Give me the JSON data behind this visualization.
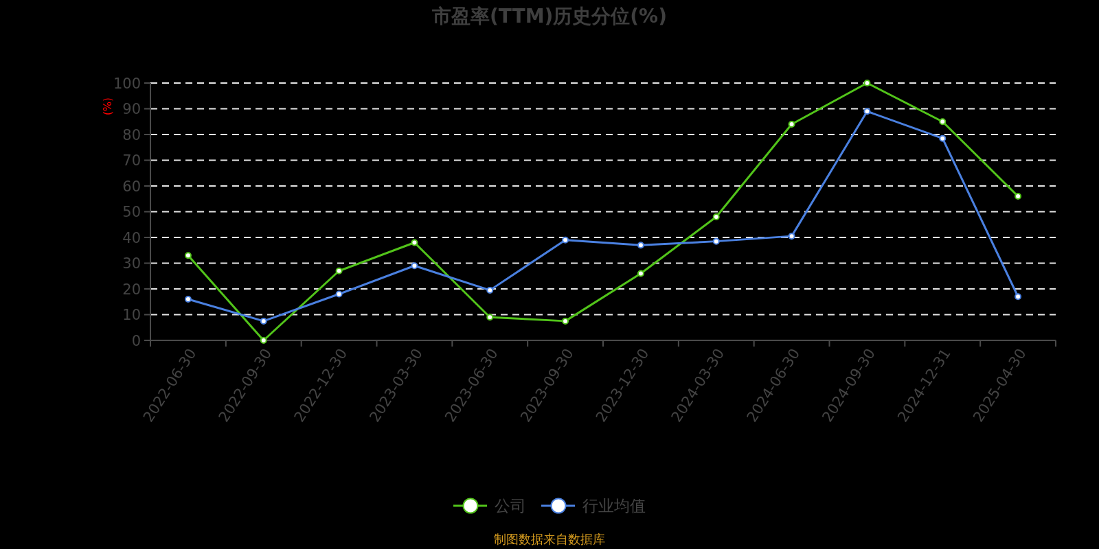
{
  "chart_data": {
    "type": "line",
    "title": "市盈率(TTM)历史分位(%)",
    "ylabel": "(%)",
    "categories": [
      "2022-06-30",
      "2022-09-30",
      "2022-12-30",
      "2023-03-30",
      "2023-06-30",
      "2023-09-30",
      "2023-12-30",
      "2024-03-30",
      "2024-06-30",
      "2024-09-30",
      "2024-12-31",
      "2025-04-30"
    ],
    "series": [
      {
        "name": "公司",
        "color": "#52c41a",
        "values": [
          33,
          0,
          27,
          38,
          9,
          7.5,
          26,
          48,
          84,
          100,
          85,
          56
        ]
      },
      {
        "name": "行业均值",
        "color": "#4a80e0",
        "values": [
          16,
          7.5,
          18,
          29,
          19.5,
          39,
          37,
          38.5,
          40.5,
          89,
          78.5,
          17
        ]
      }
    ],
    "ylim": [
      0,
      100
    ],
    "yticks": [
      0,
      10,
      20,
      30,
      40,
      50,
      60,
      70,
      80,
      90,
      100
    ],
    "grid": "y",
    "legend": "bottom",
    "marker": "circle",
    "line_style": "solid",
    "annotations": [
      "制图数据来自数据库"
    ]
  }
}
